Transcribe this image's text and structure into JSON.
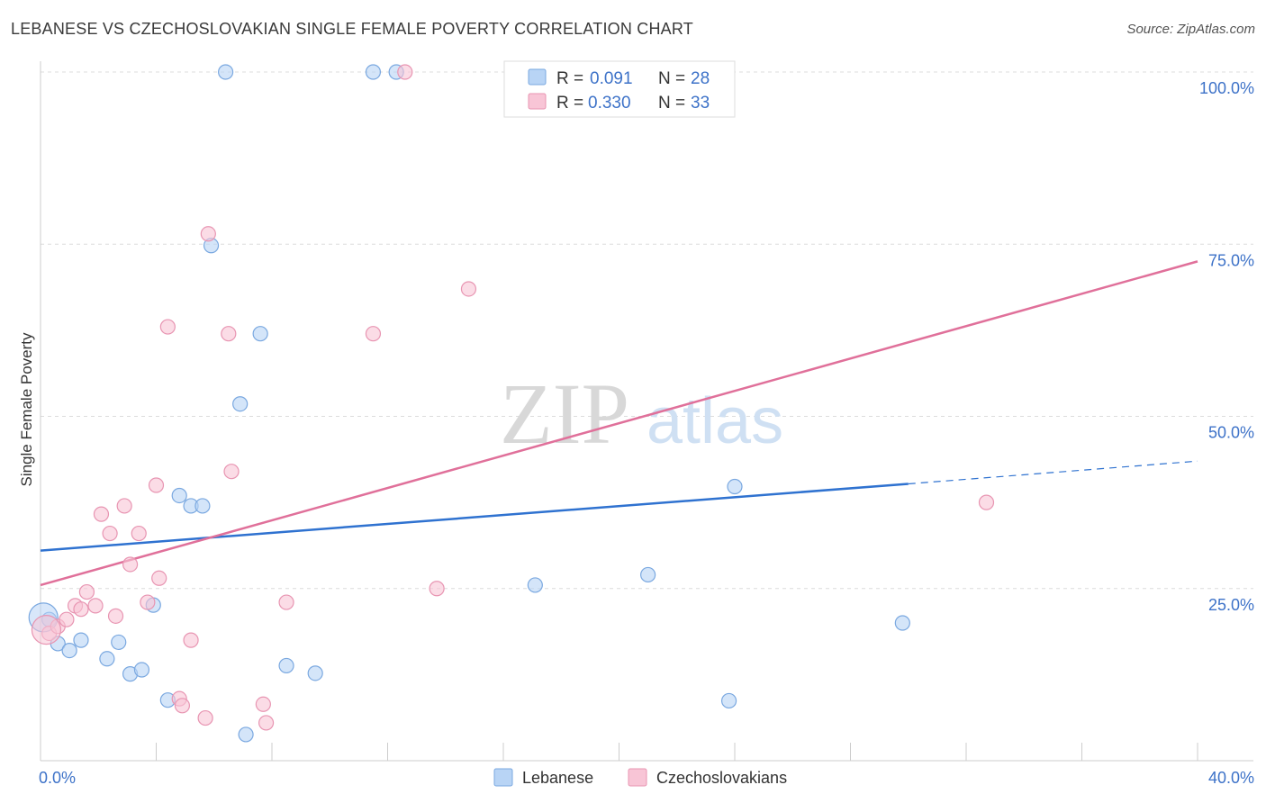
{
  "header": {
    "title": "LEBANESE VS CZECHOSLOVAKIAN SINGLE FEMALE POVERTY CORRELATION CHART",
    "source": "Source: ZipAtlas.com"
  },
  "watermark": {
    "zip": "ZIP",
    "atlas": "atlas"
  },
  "colors": {
    "lebanese_fill": "#b8d4f5",
    "lebanese_stroke": "#7aa8e0",
    "lebanese_line": "#2f72d0",
    "czech_fill": "#f8c5d6",
    "czech_stroke": "#e895b2",
    "czech_line": "#e0709a",
    "tick_text": "#3d72c8",
    "grid": "#dcdcdc"
  },
  "legend": {
    "rows": [
      {
        "r_label": "R = ",
        "r_value": "0.091",
        "n_label": "N = ",
        "n_value": "28"
      },
      {
        "r_label": "R = ",
        "r_value": "0.330",
        "n_label": "N = ",
        "n_value": "33"
      }
    ]
  },
  "chart_data": {
    "type": "scatter",
    "title": "LEBANESE VS CZECHOSLOVAKIAN SINGLE FEMALE POVERTY CORRELATION CHART",
    "xlabel": "",
    "ylabel": "Single Female Poverty",
    "xlim": [
      0,
      40
    ],
    "ylim": [
      0,
      100
    ],
    "x_tick_labels": [
      "0.0%",
      "40.0%"
    ],
    "y_ticks": [
      25,
      50,
      75,
      100
    ],
    "y_tick_labels": [
      "25.0%",
      "50.0%",
      "75.0%",
      "100.0%"
    ],
    "grid": true,
    "legend_position": "top-center",
    "series": [
      {
        "name": "Lebanese",
        "points": [
          [
            0.3,
            20.5
          ],
          [
            0.6,
            17.0
          ],
          [
            1.0,
            16.0
          ],
          [
            1.4,
            17.5
          ],
          [
            2.3,
            14.8
          ],
          [
            2.7,
            17.2
          ],
          [
            3.1,
            12.6
          ],
          [
            3.5,
            13.2
          ],
          [
            3.9,
            22.6
          ],
          [
            4.4,
            8.8
          ],
          [
            4.8,
            38.5
          ],
          [
            5.2,
            37.0
          ],
          [
            5.6,
            37.0
          ],
          [
            5.9,
            74.8
          ],
          [
            6.4,
            100.0
          ],
          [
            6.9,
            51.8
          ],
          [
            7.1,
            3.8
          ],
          [
            7.6,
            62.0
          ],
          [
            8.5,
            13.8
          ],
          [
            9.5,
            12.7
          ],
          [
            11.5,
            100.0
          ],
          [
            12.3,
            100.0
          ],
          [
            17.1,
            25.5
          ],
          [
            21.0,
            27.0
          ],
          [
            23.8,
            8.7
          ],
          [
            24.0,
            39.8
          ],
          [
            29.8,
            20.0
          ],
          [
            0.1,
            20.8
          ]
        ],
        "trend": {
          "x0": 0,
          "y0": 30.5,
          "x1": 30.0,
          "y1": 40.2,
          "dash_to_x": 40.0,
          "dash_to_y": 43.5
        }
      },
      {
        "name": "Czechoslovakians",
        "points": [
          [
            0.3,
            18.5
          ],
          [
            0.6,
            19.5
          ],
          [
            0.9,
            20.5
          ],
          [
            1.2,
            22.5
          ],
          [
            1.4,
            22.0
          ],
          [
            1.6,
            24.5
          ],
          [
            1.9,
            22.5
          ],
          [
            2.1,
            35.8
          ],
          [
            2.4,
            33.0
          ],
          [
            2.6,
            21.0
          ],
          [
            2.9,
            37.0
          ],
          [
            3.1,
            28.5
          ],
          [
            3.4,
            33.0
          ],
          [
            3.7,
            23.0
          ],
          [
            4.0,
            40.0
          ],
          [
            4.1,
            26.5
          ],
          [
            4.4,
            63.0
          ],
          [
            4.8,
            9.0
          ],
          [
            4.9,
            8.0
          ],
          [
            5.2,
            17.5
          ],
          [
            5.7,
            6.2
          ],
          [
            5.8,
            76.5
          ],
          [
            6.5,
            62.0
          ],
          [
            6.6,
            42.0
          ],
          [
            7.7,
            8.2
          ],
          [
            7.8,
            5.5
          ],
          [
            8.5,
            23.0
          ],
          [
            11.5,
            62.0
          ],
          [
            12.6,
            100.0
          ],
          [
            13.7,
            25.0
          ],
          [
            14.8,
            68.5
          ],
          [
            32.7,
            37.5
          ],
          [
            0.2,
            19.0
          ]
        ],
        "trend": {
          "x0": 0,
          "y0": 25.5,
          "x1": 40.0,
          "y1": 72.5
        }
      }
    ]
  },
  "bottom_legend": {
    "items": [
      {
        "label": "Lebanese"
      },
      {
        "label": "Czechoslovakians"
      }
    ]
  }
}
